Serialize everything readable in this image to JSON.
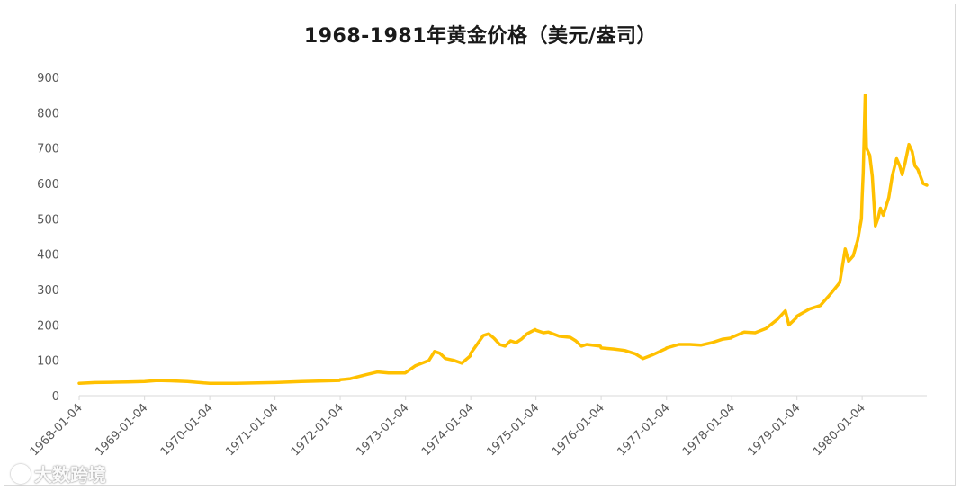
{
  "chart_data": {
    "type": "line",
    "title": "1968-1981年黄金价格（美元/盎司）",
    "xlabel": "",
    "ylabel": "",
    "ylim": [
      0,
      900
    ],
    "yticks": [
      0,
      100,
      200,
      300,
      400,
      500,
      600,
      700,
      800,
      900
    ],
    "xtick_labels": [
      "1968-01-04",
      "1969-01-04",
      "1970-01-04",
      "1971-01-04",
      "1972-01-04",
      "1973-01-04",
      "1974-01-04",
      "1975-01-04",
      "1976-01-04",
      "1977-01-04",
      "1978-01-04",
      "1979-01-04",
      "1980-01-04"
    ],
    "xlim": [
      "1968-01-04",
      "1980-12-31"
    ],
    "grid": false,
    "legend": "none",
    "line_color": "#FFC000",
    "series": [
      {
        "points": [
          [
            "1968-01-04",
            35
          ],
          [
            "1968-04-01",
            37
          ],
          [
            "1968-07-01",
            38
          ],
          [
            "1968-10-01",
            39
          ],
          [
            "1969-01-04",
            40
          ],
          [
            "1969-03-15",
            43
          ],
          [
            "1969-06-01",
            42
          ],
          [
            "1969-09-01",
            40
          ],
          [
            "1969-12-01",
            36
          ],
          [
            "1970-01-04",
            35
          ],
          [
            "1970-06-01",
            35
          ],
          [
            "1970-12-31",
            37
          ],
          [
            "1971-01-04",
            37
          ],
          [
            "1971-06-01",
            40
          ],
          [
            "1971-12-31",
            43
          ],
          [
            "1972-01-04",
            45
          ],
          [
            "1972-03-01",
            48
          ],
          [
            "1972-06-01",
            60
          ],
          [
            "1972-08-01",
            67
          ],
          [
            "1972-10-01",
            64
          ],
          [
            "1972-12-31",
            64
          ],
          [
            "1973-01-04",
            65
          ],
          [
            "1973-03-01",
            85
          ],
          [
            "1973-05-15",
            100
          ],
          [
            "1973-06-15",
            125
          ],
          [
            "1973-07-15",
            120
          ],
          [
            "1973-08-15",
            105
          ],
          [
            "1973-10-01",
            100
          ],
          [
            "1973-11-15",
            92
          ],
          [
            "1973-12-31",
            112
          ],
          [
            "1974-01-04",
            120
          ],
          [
            "1974-02-15",
            150
          ],
          [
            "1974-03-15",
            170
          ],
          [
            "1974-04-15",
            175
          ],
          [
            "1974-05-15",
            162
          ],
          [
            "1974-06-15",
            145
          ],
          [
            "1974-07-15",
            140
          ],
          [
            "1974-08-15",
            155
          ],
          [
            "1974-09-15",
            150
          ],
          [
            "1974-10-15",
            160
          ],
          [
            "1974-11-15",
            175
          ],
          [
            "1974-12-31",
            187
          ],
          [
            "1975-01-04",
            185
          ],
          [
            "1975-02-15",
            178
          ],
          [
            "1975-03-15",
            180
          ],
          [
            "1975-05-15",
            168
          ],
          [
            "1975-07-15",
            165
          ],
          [
            "1975-08-15",
            155
          ],
          [
            "1975-09-15",
            140
          ],
          [
            "1975-10-15",
            145
          ],
          [
            "1975-12-31",
            140
          ],
          [
            "1976-01-04",
            135
          ],
          [
            "1976-03-15",
            132
          ],
          [
            "1976-05-15",
            128
          ],
          [
            "1976-07-15",
            118
          ],
          [
            "1976-08-25",
            105
          ],
          [
            "1976-10-15",
            115
          ],
          [
            "1976-12-31",
            133
          ],
          [
            "1977-01-04",
            135
          ],
          [
            "1977-03-15",
            145
          ],
          [
            "1977-05-15",
            145
          ],
          [
            "1977-07-15",
            143
          ],
          [
            "1977-09-15",
            150
          ],
          [
            "1977-11-15",
            160
          ],
          [
            "1977-12-31",
            163
          ],
          [
            "1978-01-04",
            165
          ],
          [
            "1978-03-15",
            180
          ],
          [
            "1978-05-15",
            178
          ],
          [
            "1978-07-15",
            190
          ],
          [
            "1978-09-15",
            215
          ],
          [
            "1978-10-31",
            240
          ],
          [
            "1978-11-20",
            200
          ],
          [
            "1978-12-31",
            220
          ],
          [
            "1979-01-04",
            225
          ],
          [
            "1979-03-15",
            245
          ],
          [
            "1979-05-15",
            255
          ],
          [
            "1979-07-15",
            290
          ],
          [
            "1979-09-01",
            320
          ],
          [
            "1979-10-01",
            415
          ],
          [
            "1979-10-20",
            380
          ],
          [
            "1979-11-15",
            395
          ],
          [
            "1979-12-10",
            440
          ],
          [
            "1979-12-31",
            500
          ],
          [
            "1980-01-04",
            560
          ],
          [
            "1980-01-10",
            630
          ],
          [
            "1980-01-21",
            850
          ],
          [
            "1980-01-28",
            700
          ],
          [
            "1980-02-15",
            680
          ],
          [
            "1980-03-01",
            620
          ],
          [
            "1980-03-18",
            480
          ],
          [
            "1980-04-01",
            500
          ],
          [
            "1980-04-15",
            530
          ],
          [
            "1980-05-01",
            510
          ],
          [
            "1980-06-01",
            560
          ],
          [
            "1980-06-20",
            620
          ],
          [
            "1980-07-15",
            670
          ],
          [
            "1980-08-01",
            650
          ],
          [
            "1980-08-15",
            625
          ],
          [
            "1980-09-01",
            660
          ],
          [
            "1980-09-22",
            710
          ],
          [
            "1980-10-10",
            690
          ],
          [
            "1980-10-25",
            650
          ],
          [
            "1980-11-10",
            640
          ],
          [
            "1980-11-25",
            620
          ],
          [
            "1980-12-10",
            600
          ],
          [
            "1980-12-31",
            595
          ]
        ]
      }
    ]
  },
  "watermark": {
    "text": "大数跨境"
  }
}
